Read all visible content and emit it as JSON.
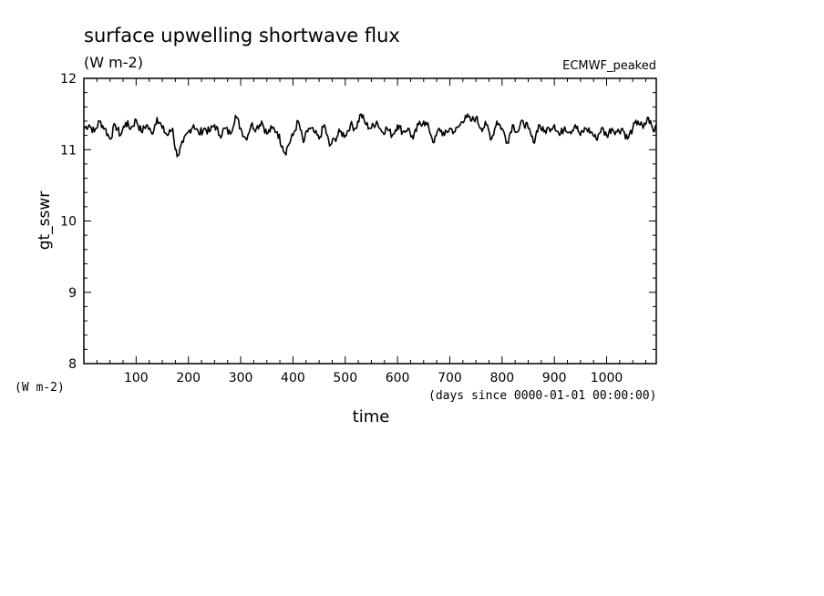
{
  "chart_data": {
    "type": "line",
    "title": "surface upwelling shortwave flux",
    "subtitle": "(W m-2)",
    "dataset_label": "ECMWF_peaked",
    "ylabel": "gt_sswr",
    "yunits": "(W m-2)",
    "xlabel": "time",
    "xunits": "(days since 0000-01-01 00:00:00)",
    "xlim": [
      0,
      1095
    ],
    "ylim": [
      8,
      12
    ],
    "x_ticks": [
      100,
      200,
      300,
      400,
      500,
      600,
      700,
      800,
      900,
      1000
    ],
    "y_ticks": [
      8,
      9,
      10,
      11,
      12
    ],
    "grid": false,
    "line_color": "#000000",
    "series": [
      {
        "x": [
          0,
          10,
          20,
          30,
          40,
          50,
          60,
          70,
          80,
          90,
          100,
          110,
          120,
          130,
          140,
          150,
          160,
          170,
          175,
          180,
          190,
          200,
          210,
          220,
          230,
          240,
          250,
          260,
          270,
          280,
          290,
          300,
          310,
          320,
          330,
          340,
          350,
          360,
          370,
          380,
          385,
          390,
          400,
          410,
          420,
          430,
          440,
          450,
          460,
          470,
          480,
          490,
          500,
          510,
          520,
          530,
          540,
          550,
          560,
          570,
          580,
          590,
          600,
          610,
          620,
          630,
          640,
          650,
          660,
          670,
          680,
          690,
          700,
          710,
          720,
          730,
          740,
          750,
          760,
          770,
          780,
          790,
          800,
          810,
          820,
          830,
          840,
          850,
          860,
          870,
          880,
          890,
          900,
          910,
          920,
          930,
          940,
          950,
          960,
          970,
          980,
          990,
          1000,
          1010,
          1020,
          1030,
          1040,
          1050,
          1060,
          1070,
          1080,
          1090,
          1095
        ],
        "values": [
          11.3,
          11.35,
          11.25,
          11.4,
          11.3,
          11.15,
          11.35,
          11.2,
          11.38,
          11.3,
          11.42,
          11.25,
          11.35,
          11.22,
          11.45,
          11.3,
          11.2,
          11.3,
          11.0,
          10.92,
          11.1,
          11.25,
          11.35,
          11.22,
          11.3,
          11.25,
          11.35,
          11.2,
          11.3,
          11.22,
          11.48,
          11.3,
          11.15,
          11.35,
          11.3,
          11.4,
          11.22,
          11.3,
          11.25,
          11.05,
          10.95,
          11.05,
          11.2,
          11.4,
          11.1,
          11.3,
          11.25,
          11.15,
          11.35,
          11.05,
          11.15,
          11.25,
          11.2,
          11.35,
          11.3,
          11.5,
          11.35,
          11.3,
          11.4,
          11.25,
          11.3,
          11.2,
          11.35,
          11.25,
          11.3,
          11.15,
          11.35,
          11.4,
          11.3,
          11.1,
          11.3,
          11.2,
          11.3,
          11.25,
          11.35,
          11.48,
          11.4,
          11.45,
          11.3,
          11.35,
          11.15,
          11.4,
          11.3,
          11.1,
          11.35,
          11.25,
          11.4,
          11.3,
          11.1,
          11.35,
          11.25,
          11.3,
          11.35,
          11.2,
          11.32,
          11.25,
          11.35,
          11.2,
          11.3,
          11.25,
          11.15,
          11.3,
          11.2,
          11.3,
          11.25,
          11.3,
          11.15,
          11.3,
          11.4,
          11.3,
          11.45,
          11.25,
          11.35
        ]
      }
    ]
  }
}
